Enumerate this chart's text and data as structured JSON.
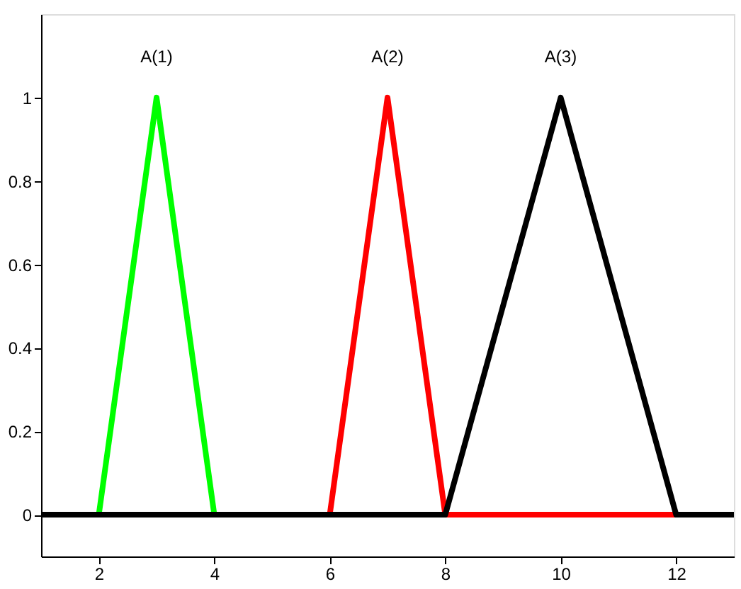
{
  "chart_data": {
    "type": "line",
    "xlim": [
      1,
      13
    ],
    "ylim": [
      -0.1,
      1.2
    ],
    "xticks": [
      2,
      4,
      6,
      8,
      10,
      12
    ],
    "yticks": [
      0,
      0.2,
      0.4,
      0.6,
      0.8,
      1
    ],
    "grid": false,
    "marker": "none",
    "line_style": "solid",
    "series": [
      {
        "color": "#00ff00",
        "x": [
          1,
          2,
          3,
          4,
          13
        ],
        "values": [
          0,
          0,
          1,
          0,
          0
        ]
      },
      {
        "color": "#ff0000",
        "x": [
          1,
          6,
          7,
          8,
          13
        ],
        "values": [
          0,
          0,
          1,
          0,
          0
        ]
      },
      {
        "color": "#000000",
        "x": [
          1,
          8,
          10,
          12,
          13
        ],
        "values": [
          0,
          0,
          1,
          0,
          0
        ]
      }
    ],
    "annotations": [
      "A(1)",
      "A(2)",
      "A(3)"
    ]
  }
}
